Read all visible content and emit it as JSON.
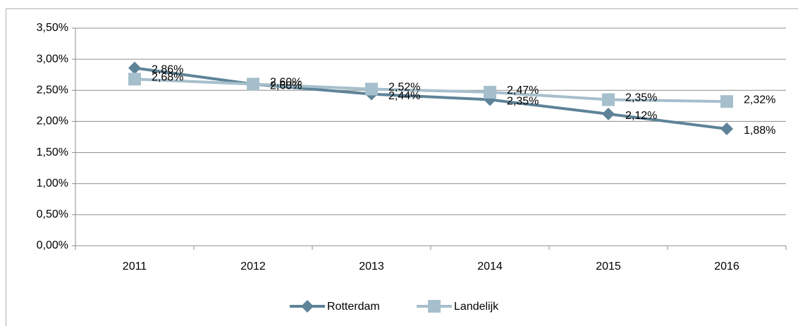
{
  "chart_data": {
    "type": "line",
    "categories": [
      "2011",
      "2012",
      "2013",
      "2014",
      "2015",
      "2016"
    ],
    "series": [
      {
        "name": "Rotterdam",
        "color": "#5e8398",
        "marker": "diamond",
        "values": [
          2.86,
          2.6,
          2.44,
          2.35,
          2.12,
          1.88
        ],
        "value_labels": [
          "2,86%",
          "2,60%",
          "2,44%",
          "2,35%",
          "2,12%",
          "1,88%"
        ]
      },
      {
        "name": "Landelijk",
        "color": "#a6bfcc",
        "marker": "square",
        "values": [
          2.68,
          2.6,
          2.52,
          2.47,
          2.35,
          2.32
        ],
        "value_labels": [
          "2,68%",
          "2,60%",
          "2,52%",
          "2,47%",
          "2,35%",
          "2,32%"
        ]
      }
    ],
    "ylim": [
      0,
      3.5
    ],
    "yticks": [
      {
        "value": 0,
        "label": "0,00%"
      },
      {
        "value": 0.5,
        "label": "0,50%"
      },
      {
        "value": 1,
        "label": "1,00%"
      },
      {
        "value": 1.5,
        "label": "1,50%"
      },
      {
        "value": 2,
        "label": "2,00%"
      },
      {
        "value": 2.5,
        "label": "2,50%"
      },
      {
        "value": 3,
        "label": "3,00%"
      },
      {
        "value": 3.5,
        "label": "3,50%"
      }
    ],
    "grid": true,
    "legend": "bottom"
  }
}
